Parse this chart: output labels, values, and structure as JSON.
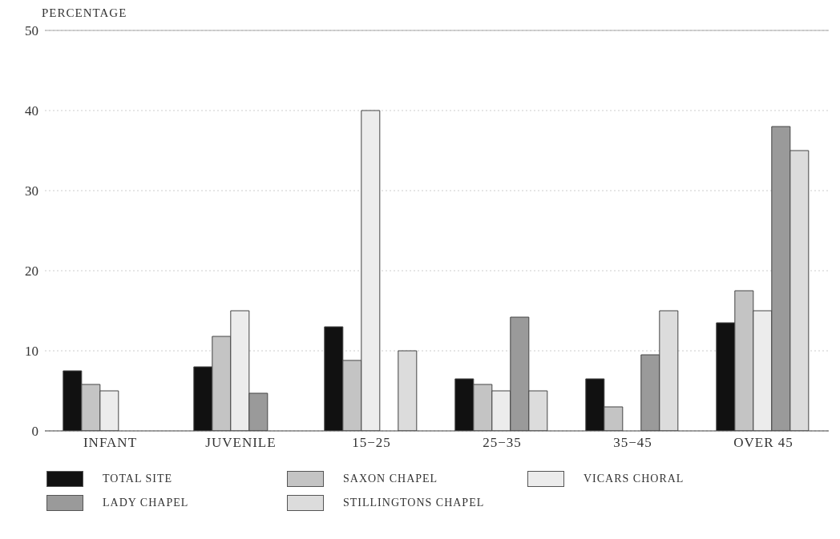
{
  "chart_data": {
    "type": "bar",
    "ylabel": "PERCENTAGE",
    "categories": [
      "INFANT",
      "JUVENILE",
      "15−25",
      "25−35",
      "35−45",
      "OVER 45"
    ],
    "series": [
      {
        "name": "TOTAL SITE",
        "color": "#111111",
        "values": [
          7.5,
          8,
          13,
          6.5,
          6.5,
          13.5
        ]
      },
      {
        "name": "SAXON CHAPEL",
        "color": "#c4c4c4",
        "values": [
          5.8,
          11.8,
          8.8,
          5.8,
          3,
          17.5
        ]
      },
      {
        "name": "VICARS CHORAL",
        "color": "#ececec",
        "values": [
          5,
          15,
          40,
          5,
          0,
          15
        ]
      },
      {
        "name": "LADY CHAPEL",
        "color": "#9a9a9a",
        "values": [
          0,
          4.7,
          0,
          14.2,
          9.5,
          38
        ]
      },
      {
        "name": "STILLINGTONS CHAPEL",
        "color": "#dcdcdc",
        "values": [
          0,
          0,
          10,
          5,
          15,
          35
        ]
      }
    ],
    "ylim": [
      0,
      50
    ],
    "yticks": [
      0,
      10,
      20,
      30,
      40,
      50
    ],
    "grid": "y",
    "legend": "bottom"
  }
}
